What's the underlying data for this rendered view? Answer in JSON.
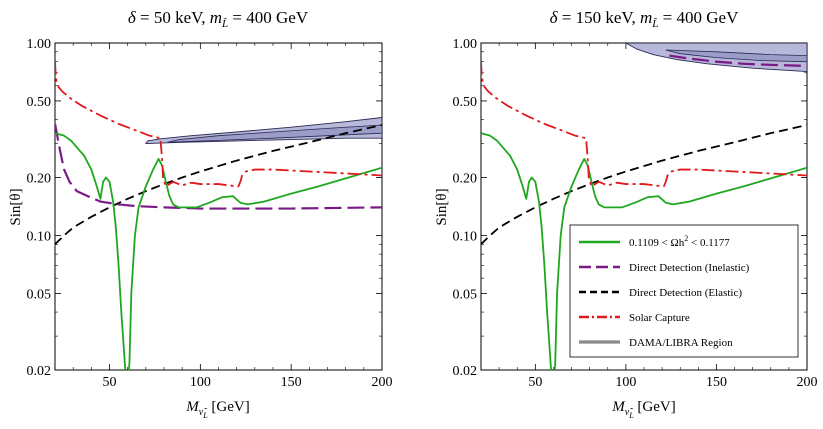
{
  "chart_data": [
    {
      "type": "line",
      "title": "δ = 50 keV,  m_L̃ = 400 GeV",
      "title_parts": {
        "delta": "δ",
        "delta_val": " = 50 keV,  ",
        "m": "m",
        "sub": "L̃",
        "m_val": " = 400 GeV"
      },
      "xlabel": {
        "main": "M",
        "sub": "ν̃",
        "subsub": "L",
        "unit": " [GeV]"
      },
      "ylabel": "Sin[θ]",
      "xlim": [
        20,
        200
      ],
      "ylim": [
        0.02,
        1.0
      ],
      "yscale": "log",
      "xticks": [
        50,
        100,
        150,
        200
      ],
      "xtick_labels": [
        "50",
        "100",
        "150",
        "200"
      ],
      "yticks": [
        0.02,
        0.05,
        0.1,
        0.2,
        0.5,
        1.0
      ],
      "ytick_labels": [
        "0.02",
        "0.05",
        "0.10",
        "0.20",
        "0.50",
        "1.00"
      ],
      "series": [
        {
          "name": "0.1109 < Ωh² < 0.1177",
          "key": "relic",
          "color": "#1fa81f",
          "dash": "",
          "x": [
            20,
            25,
            29,
            33,
            36,
            40,
            43,
            45,
            46.5,
            48,
            50,
            52,
            53.5,
            55,
            56.5,
            58,
            59,
            60,
            61,
            62,
            64,
            66,
            70,
            74,
            77,
            79,
            81,
            83,
            85,
            88,
            93,
            98,
            105,
            112,
            118,
            122,
            126,
            135,
            150,
            165,
            180,
            200
          ],
          "y": [
            0.34,
            0.33,
            0.31,
            0.28,
            0.26,
            0.22,
            0.18,
            0.155,
            0.19,
            0.2,
            0.19,
            0.15,
            0.11,
            0.07,
            0.04,
            0.025,
            0.018,
            0.016,
            0.022,
            0.05,
            0.1,
            0.14,
            0.18,
            0.22,
            0.25,
            0.23,
            0.19,
            0.16,
            0.145,
            0.14,
            0.14,
            0.14,
            0.148,
            0.158,
            0.16,
            0.148,
            0.145,
            0.15,
            0.165,
            0.18,
            0.198,
            0.225
          ]
        },
        {
          "name": "Direct Detection (Inelastic)",
          "key": "inelastic",
          "color": "#7a1a86",
          "dash": "17,6",
          "x": [
            20,
            21,
            22,
            23,
            25,
            28,
            32,
            38,
            45,
            55,
            65,
            80,
            100,
            125,
            150,
            175,
            200
          ],
          "y": [
            0.38,
            0.34,
            0.3,
            0.27,
            0.22,
            0.19,
            0.17,
            0.16,
            0.15,
            0.145,
            0.142,
            0.14,
            0.138,
            0.138,
            0.138,
            0.139,
            0.14
          ]
        },
        {
          "name": "Direct Detection (Elastic)",
          "key": "elastic",
          "color": "#000000",
          "dash": "9,5",
          "x": [
            20,
            25,
            30,
            40,
            50,
            60,
            70,
            80,
            90,
            100,
            120,
            140,
            160,
            180,
            200
          ],
          "y": [
            0.09,
            0.1,
            0.11,
            0.125,
            0.14,
            0.155,
            0.17,
            0.185,
            0.2,
            0.215,
            0.245,
            0.275,
            0.305,
            0.34,
            0.375
          ]
        },
        {
          "name": "Solar Capture",
          "key": "solar",
          "color": "#e0191d",
          "dash": "13,4,3,4",
          "x": [
            20,
            20.4,
            21,
            22,
            24,
            28,
            35,
            45,
            55,
            65,
            72,
            78,
            78.8,
            79.5,
            81,
            85,
            90,
            95,
            100,
            110,
            120,
            121,
            122,
            123,
            125,
            130,
            140,
            160,
            180,
            200
          ],
          "y": [
            0.8,
            0.68,
            0.62,
            0.59,
            0.56,
            0.52,
            0.47,
            0.42,
            0.38,
            0.35,
            0.33,
            0.32,
            0.26,
            0.2,
            0.18,
            0.19,
            0.182,
            0.188,
            0.185,
            0.185,
            0.18,
            0.18,
            0.19,
            0.205,
            0.215,
            0.22,
            0.22,
            0.215,
            0.21,
            0.205
          ]
        }
      ],
      "regions": [
        {
          "name": "DAMA/LIBRA Region",
          "key": "dama",
          "fill": "#b8b8da",
          "inner_fill": "#9c9cc8",
          "stroke": "#2a2a55",
          "outer": [
            [
              70,
              0.3
            ],
            [
              90,
              0.305
            ],
            [
              120,
              0.31
            ],
            [
              150,
              0.315
            ],
            [
              180,
              0.32
            ],
            [
              200,
              0.32
            ],
            [
              200,
              0.41
            ],
            [
              180,
              0.39
            ],
            [
              150,
              0.365
            ],
            [
              120,
              0.345
            ],
            [
              95,
              0.33
            ],
            [
              78,
              0.318
            ],
            [
              71,
              0.31
            ]
          ],
          "inner": [
            [
              82,
              0.305
            ],
            [
              110,
              0.312
            ],
            [
              140,
              0.32
            ],
            [
              170,
              0.33
            ],
            [
              200,
              0.34
            ],
            [
              200,
              0.375
            ],
            [
              170,
              0.36
            ],
            [
              140,
              0.345
            ],
            [
              110,
              0.33
            ],
            [
              88,
              0.315
            ]
          ]
        }
      ]
    },
    {
      "type": "line",
      "title": "δ = 150 keV,  m_L̃ = 400 GeV",
      "title_parts": {
        "delta": "δ",
        "delta_val": " = 150 keV,  ",
        "m": "m",
        "sub": "L̃",
        "m_val": " = 400 GeV"
      },
      "xlabel": {
        "main": "M",
        "sub": "ν̃",
        "subsub": "L",
        "unit": " [GeV]"
      },
      "ylabel": "Sin[θ]",
      "xlim": [
        20,
        200
      ],
      "ylim": [
        0.02,
        1.0
      ],
      "yscale": "log",
      "xticks": [
        50,
        100,
        150,
        200
      ],
      "xtick_labels": [
        "50",
        "100",
        "150",
        "200"
      ],
      "yticks": [
        0.02,
        0.05,
        0.1,
        0.2,
        0.5,
        1.0
      ],
      "ytick_labels": [
        "0.02",
        "0.05",
        "0.10",
        "0.20",
        "0.50",
        "1.00"
      ],
      "series": [
        {
          "name": "0.1109 < Ωh² < 0.1177",
          "key": "relic",
          "color": "#1fa81f",
          "dash": "",
          "x": [
            20,
            25,
            29,
            33,
            36,
            40,
            43,
            45,
            46.5,
            48,
            50,
            52,
            53.5,
            55,
            56.5,
            58,
            59,
            60,
            61,
            62,
            64,
            66,
            70,
            74,
            77,
            79,
            81,
            83,
            85,
            88,
            93,
            98,
            105,
            112,
            118,
            122,
            126,
            135,
            150,
            165,
            180,
            200
          ],
          "y": [
            0.34,
            0.33,
            0.31,
            0.28,
            0.26,
            0.22,
            0.18,
            0.155,
            0.19,
            0.2,
            0.19,
            0.15,
            0.11,
            0.07,
            0.04,
            0.025,
            0.018,
            0.016,
            0.022,
            0.05,
            0.1,
            0.14,
            0.18,
            0.22,
            0.25,
            0.23,
            0.19,
            0.16,
            0.145,
            0.14,
            0.14,
            0.14,
            0.148,
            0.158,
            0.16,
            0.148,
            0.145,
            0.15,
            0.165,
            0.18,
            0.198,
            0.225
          ]
        },
        {
          "name": "Direct Detection (Inelastic)",
          "key": "inelastic",
          "color": "#7a1a86",
          "dash": "17,6",
          "x": [
            124,
            135,
            150,
            165,
            180,
            200
          ],
          "y": [
            0.86,
            0.83,
            0.8,
            0.78,
            0.77,
            0.76
          ]
        },
        {
          "name": "Direct Detection (Elastic)",
          "key": "elastic",
          "color": "#000000",
          "dash": "9,5",
          "x": [
            20,
            25,
            30,
            40,
            50,
            60,
            70,
            80,
            90,
            100,
            120,
            140,
            160,
            180,
            200
          ],
          "y": [
            0.09,
            0.1,
            0.11,
            0.125,
            0.14,
            0.155,
            0.17,
            0.185,
            0.2,
            0.215,
            0.245,
            0.275,
            0.305,
            0.34,
            0.375
          ]
        },
        {
          "name": "Solar Capture",
          "key": "solar",
          "color": "#e0191d",
          "dash": "13,4,3,4",
          "x": [
            20,
            20.4,
            21,
            22,
            24,
            28,
            35,
            45,
            55,
            65,
            72,
            78,
            78.8,
            79.5,
            81,
            85,
            90,
            95,
            100,
            110,
            120,
            121,
            122,
            123,
            125,
            130,
            140,
            160,
            180,
            200
          ],
          "y": [
            0.8,
            0.68,
            0.62,
            0.59,
            0.56,
            0.52,
            0.47,
            0.42,
            0.38,
            0.35,
            0.33,
            0.32,
            0.26,
            0.2,
            0.18,
            0.19,
            0.182,
            0.188,
            0.185,
            0.185,
            0.18,
            0.18,
            0.19,
            0.205,
            0.215,
            0.22,
            0.22,
            0.215,
            0.21,
            0.205
          ]
        }
      ],
      "regions": [
        {
          "name": "DAMA/LIBRA Region",
          "key": "dama",
          "fill": "#b8b8da",
          "inner_fill": "#9c9cc8",
          "stroke": "#2a2a55",
          "outer": [
            [
              100,
              1.0
            ],
            [
              200,
              1.0
            ],
            [
              200,
              0.71
            ],
            [
              170,
              0.74
            ],
            [
              145,
              0.78
            ],
            [
              128,
              0.82
            ],
            [
              115,
              0.87
            ],
            [
              106,
              0.93
            ]
          ],
          "inner": [
            [
              122,
              0.92
            ],
            [
              150,
              0.9
            ],
            [
              180,
              0.87
            ],
            [
              200,
              0.86
            ],
            [
              200,
              0.8
            ],
            [
              175,
              0.81
            ],
            [
              150,
              0.84
            ],
            [
              130,
              0.88
            ]
          ]
        }
      ],
      "legend": {
        "position": "lower-right",
        "entries": [
          {
            "key": "relic",
            "label": "0.1109 < Ωh² < 0.1177",
            "parts": {
              "pre": "0.1109 < Ωh",
              "sup": "2",
              "post": " < 0.1177"
            },
            "color": "#1fa81f",
            "dash": "",
            "width": 2.4
          },
          {
            "key": "inelastic",
            "label": "Direct Detection (Inelastic)",
            "color": "#7a1a86",
            "dash": "12,5",
            "width": 2.6
          },
          {
            "key": "elastic",
            "label": "Direct Detection (Elastic)",
            "color": "#000000",
            "dash": "7,4",
            "width": 2.4
          },
          {
            "key": "solar",
            "label": "Solar Capture",
            "color": "#e0191d",
            "dash": "10,3,2,3",
            "width": 2.4
          },
          {
            "key": "dama",
            "label": "DAMA/LIBRA Region",
            "color": "#8a8a8a",
            "dash": "",
            "width": 3.2
          }
        ]
      }
    }
  ]
}
